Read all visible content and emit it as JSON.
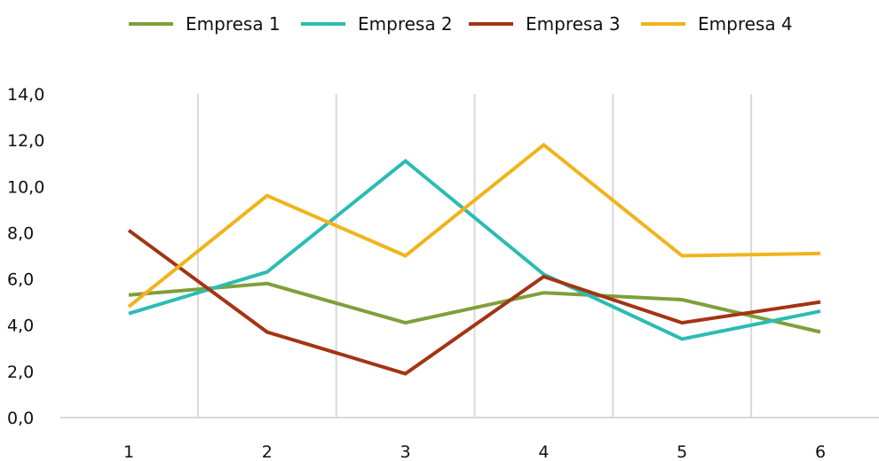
{
  "chart_data": {
    "type": "line",
    "title": "",
    "xlabel": "",
    "ylabel": "",
    "categories": [
      "1",
      "2",
      "3",
      "4",
      "5",
      "6"
    ],
    "ylim": [
      0,
      14
    ],
    "yticks": [
      "0,0",
      "2,0",
      "4,0",
      "6,0",
      "8,0",
      "10,0",
      "12,0",
      "14,0"
    ],
    "ytick_values": [
      0,
      2,
      4,
      6,
      8,
      10,
      12,
      14
    ],
    "grid": "vertical",
    "legend": "top-center",
    "series": [
      {
        "name": "Empresa 1",
        "color": "#7f9f3a",
        "values": [
          5.3,
          5.8,
          4.1,
          5.4,
          5.1,
          3.7
        ]
      },
      {
        "name": "Empresa 2",
        "color": "#2bbcb3",
        "values": [
          4.5,
          6.3,
          11.1,
          6.2,
          3.4,
          4.6
        ]
      },
      {
        "name": "Empresa 3",
        "color": "#a33414",
        "values": [
          8.1,
          3.7,
          1.9,
          6.1,
          4.1,
          5.0
        ]
      },
      {
        "name": "Empresa 4",
        "color": "#f0b41b",
        "values": [
          4.8,
          9.6,
          7.0,
          11.8,
          7.0,
          7.1
        ]
      }
    ]
  }
}
